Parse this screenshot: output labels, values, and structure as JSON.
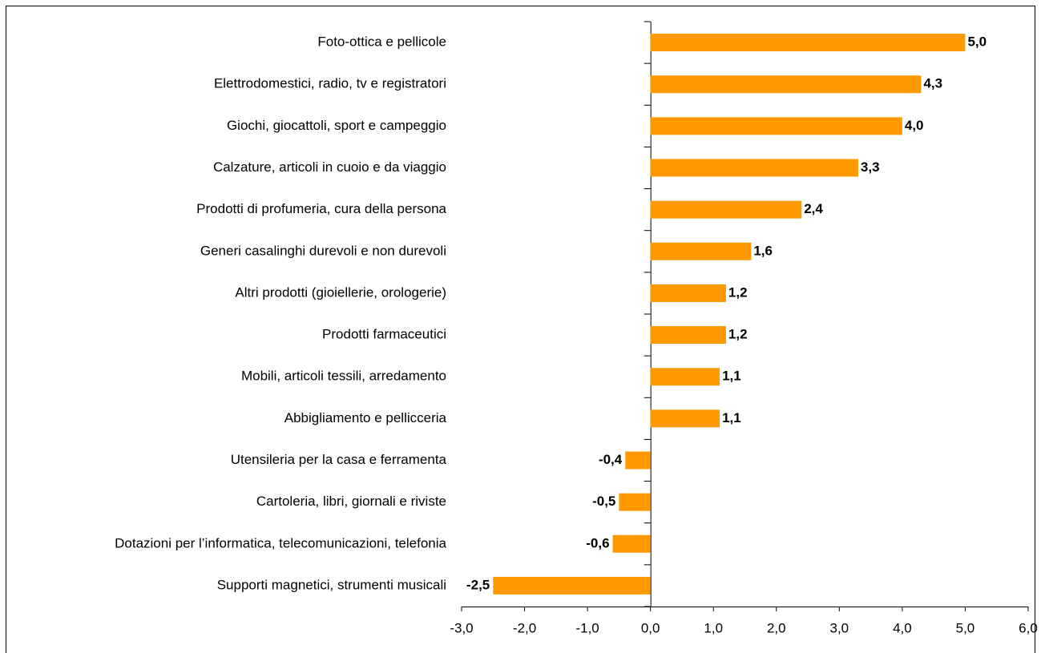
{
  "chart_data": {
    "type": "hbar",
    "color": "#ff9900",
    "categories": [
      "Foto-ottica e pellicole",
      "Elettrodomestici, radio, tv e registratori",
      "Giochi, giocattoli, sport e campeggio",
      "Calzature, articoli in cuoio e da viaggio",
      "Prodotti di profumeria, cura della persona",
      "Generi casalinghi durevoli e non durevoli",
      "Altri prodotti (gioiellerie, orologerie)",
      "Prodotti farmaceutici",
      "Mobili, articoli tessili, arredamento",
      "Abbigliamento e pellicceria",
      "Utensileria per la casa e ferramenta",
      "Cartoleria, libri, giornali e riviste",
      "Dotazioni per l’informatica, telecomunicazioni, telefonia",
      "Supporti magnetici, strumenti musicali"
    ],
    "values": [
      5.0,
      4.3,
      4.0,
      3.3,
      2.4,
      1.6,
      1.2,
      1.2,
      1.1,
      1.1,
      -0.4,
      -0.5,
      -0.6,
      -2.5
    ],
    "value_labels": [
      "5,0",
      "4,3",
      "4,0",
      "3,3",
      "2,4",
      "1,6",
      "1,2",
      "1,2",
      "1,1",
      "1,1",
      "-0,4",
      "-0,5",
      "-0,6",
      "-2,5"
    ],
    "xlim": [
      -3,
      6
    ],
    "xticks": [
      {
        "value": -3,
        "label": "-3,0"
      },
      {
        "value": -2,
        "label": "-2,0"
      },
      {
        "value": -1,
        "label": "-1,0"
      },
      {
        "value": 0,
        "label": "0,0"
      },
      {
        "value": 1,
        "label": "1,0"
      },
      {
        "value": 2,
        "label": "2,0"
      },
      {
        "value": 3,
        "label": "3,0"
      },
      {
        "value": 4,
        "label": "4,0"
      },
      {
        "value": 5,
        "label": "5,0"
      },
      {
        "value": 6,
        "label": "6,0"
      }
    ],
    "grid": false
  }
}
